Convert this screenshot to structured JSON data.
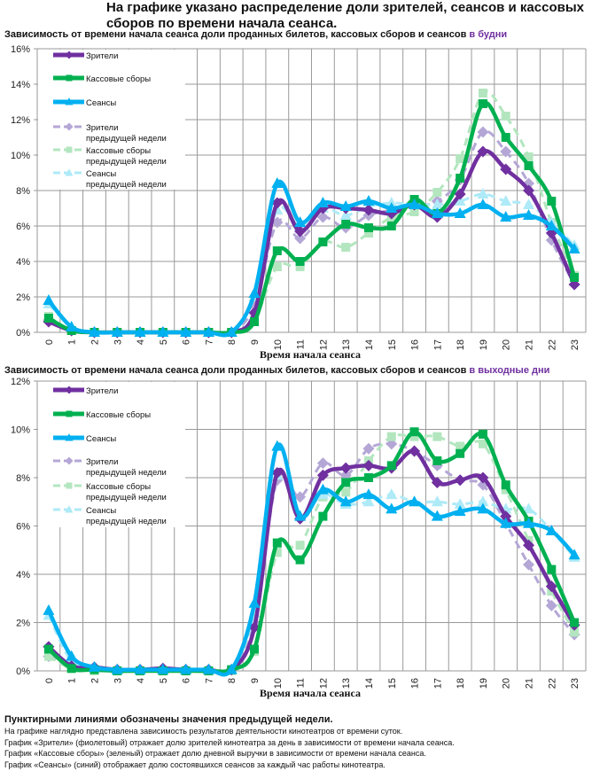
{
  "title": "На графике указано распределение доли зрителей, сеансов и кассовых сборов по времени начала сеанса.",
  "colors": {
    "viewers": "#7030a0",
    "revenue": "#00b050",
    "sessions": "#00b0f0",
    "viewers_prev": "#b4a7d6",
    "revenue_prev": "#b3e6bf",
    "sessions_prev": "#aeeaf7"
  },
  "notes": {
    "head": "Пунктирными линиями обозначены значения предыдущей недели.",
    "lines": [
      "На графике наглядно представлена зависимость результатов деятельности кинотеатров от времени суток.",
      "График «Зрители» (фиолетовый)  отражает долю зрителей кинотеатра за день в зависимости от времени  начала сеанса.",
      "График «Кассовые сборы» (зеленый) отражает долю дневной выручки в зависимости от времени начала сеанса.",
      "График «Сеансы» (синий) отображает долю состоявшихся сеансов  за каждый час работы кинотеатра."
    ]
  },
  "chart_data": [
    {
      "type": "line",
      "title": "Зависимость от времени начала сеанса доли проданных билетов, кассовых сборов и сеансов",
      "title_highlight": "в будни",
      "xlabel": "Время начала сеанса",
      "ylabel": "",
      "ylim": [
        0,
        16
      ],
      "yticks": [
        "0%",
        "2%",
        "4%",
        "6%",
        "8%",
        "10%",
        "12%",
        "14%",
        "16%"
      ],
      "categories": [
        "0",
        "1",
        "2",
        "3",
        "4",
        "5",
        "6",
        "7",
        "8",
        "9",
        "10",
        "11",
        "12",
        "13",
        "14",
        "15",
        "16",
        "17",
        "18",
        "19",
        "20",
        "21",
        "22",
        "23"
      ],
      "grid": true,
      "legend": "top-left",
      "series": [
        {
          "key": "viewers_prev",
          "name": "Зрители предыдущей недели",
          "name_lines": [
            "Зрители",
            "предыдущей недели"
          ],
          "dashed": true,
          "marker": "diamond",
          "values": [
            0.7,
            0.1,
            0,
            0,
            0,
            0,
            0,
            0,
            0,
            1.5,
            6.2,
            5.3,
            6.5,
            5.9,
            6.6,
            6.9,
            7.1,
            7.4,
            8.6,
            11.3,
            10.2,
            8.4,
            5.2,
            2.7
          ]
        },
        {
          "key": "revenue_prev",
          "name": "Кассовые сборы предыдущей недели",
          "name_lines": [
            "Кассовые сборы",
            "предыдущей недели"
          ],
          "dashed": true,
          "marker": "square",
          "values": [
            0.9,
            0.1,
            0,
            0,
            0,
            0,
            0,
            0,
            0,
            0.7,
            3.7,
            3.7,
            5.1,
            4.8,
            5.6,
            6.5,
            6.8,
            7.9,
            9.8,
            13.5,
            12.2,
            9.9,
            6.2,
            3.2
          ]
        },
        {
          "key": "sessions_prev",
          "name": "Сеансы предыдущей недели",
          "name_lines": [
            "Сеансы",
            "предыдущей недели"
          ],
          "dashed": true,
          "marker": "triangle",
          "values": [
            1.6,
            0.3,
            0,
            0,
            0,
            0,
            0,
            0,
            0,
            2.0,
            6.9,
            6.0,
            7.0,
            6.6,
            7.1,
            7.3,
            7.2,
            7.2,
            7.4,
            7.8,
            7.4,
            7.2,
            6.2,
            4.9
          ]
        },
        {
          "key": "viewers",
          "name": "Зрители",
          "name_lines": [
            "Зрители"
          ],
          "dashed": false,
          "marker": "diamond",
          "values": [
            0.6,
            0.1,
            0,
            0,
            0,
            0,
            0,
            0,
            0,
            1.1,
            7.3,
            5.7,
            7.0,
            7.0,
            6.9,
            6.7,
            7.2,
            6.5,
            7.8,
            10.2,
            9.2,
            8.0,
            5.6,
            2.7
          ]
        },
        {
          "key": "revenue",
          "name": "Кассовые сборы",
          "name_lines": [
            "Кассовые сборы"
          ],
          "dashed": false,
          "marker": "square",
          "values": [
            0.8,
            0.1,
            0,
            0,
            0,
            0,
            0,
            0,
            0,
            0.6,
            4.6,
            4.0,
            5.1,
            6.1,
            5.9,
            6.0,
            7.5,
            6.7,
            8.7,
            12.9,
            11.0,
            9.4,
            7.4,
            3.1
          ]
        },
        {
          "key": "sessions",
          "name": "Сеансы",
          "name_lines": [
            "Сеансы"
          ],
          "dashed": false,
          "marker": "triangle",
          "values": [
            1.8,
            0.3,
            0,
            0,
            0,
            0,
            0,
            0,
            0,
            2.2,
            8.4,
            6.2,
            7.3,
            7.1,
            7.4,
            7.0,
            7.2,
            6.7,
            6.7,
            7.2,
            6.5,
            6.6,
            6.0,
            4.7
          ]
        }
      ]
    },
    {
      "type": "line",
      "title": "Зависимость от времени начала сеанса доли проданных билетов, кассовых сборов и сеансов",
      "title_highlight": "в выходные дни",
      "xlabel": "Время начала сеанса",
      "ylabel": "",
      "ylim": [
        0,
        12
      ],
      "yticks": [
        "0%",
        "2%",
        "4%",
        "6%",
        "8%",
        "10%",
        "12%"
      ],
      "categories": [
        "0",
        "1",
        "2",
        "3",
        "4",
        "5",
        "6",
        "7",
        "8",
        "9",
        "10",
        "11",
        "12",
        "13",
        "14",
        "15",
        "16",
        "17",
        "18",
        "19",
        "20",
        "21",
        "22",
        "23"
      ],
      "grid": true,
      "legend": "top-left",
      "series": [
        {
          "key": "viewers_prev",
          "name": "Зрители предыдущей недели",
          "name_lines": [
            "Зрители",
            "предыдущей недели"
          ],
          "dashed": true,
          "marker": "diamond",
          "values": [
            0.6,
            0.2,
            0.1,
            0.05,
            0.05,
            0.05,
            0.05,
            0.05,
            0.05,
            2.0,
            7.9,
            7.2,
            8.6,
            8.1,
            9.2,
            9.4,
            9.1,
            8.5,
            7.9,
            7.7,
            6.1,
            4.4,
            2.7,
            1.5
          ]
        },
        {
          "key": "revenue_prev",
          "name": "Кассовые сборы предыдущей недели",
          "name_lines": [
            "Кассовые сборы",
            "предыдущей недели"
          ],
          "dashed": true,
          "marker": "square",
          "values": [
            0.6,
            0.1,
            0,
            0,
            0,
            0,
            0,
            0,
            0,
            0.8,
            4.9,
            5.2,
            7.2,
            7.4,
            8.7,
            9.7,
            9.7,
            9.7,
            9.3,
            9.4,
            7.5,
            5.4,
            3.3,
            1.6
          ]
        },
        {
          "key": "sessions_prev",
          "name": "Сеансы предыдущей недели",
          "name_lines": [
            "Сеансы",
            "предыдущей недели"
          ],
          "dashed": true,
          "marker": "triangle",
          "values": [
            2.3,
            0.4,
            0.1,
            0.05,
            0.05,
            0.05,
            0.05,
            0.05,
            0.05,
            2.4,
            8.1,
            6.4,
            7.3,
            6.9,
            7.0,
            7.3,
            7.0,
            7.0,
            6.9,
            7.0,
            6.7,
            6.7,
            5.8,
            4.7
          ]
        },
        {
          "key": "viewers",
          "name": "Зрители",
          "name_lines": [
            "Зрители"
          ],
          "dashed": false,
          "marker": "diamond",
          "values": [
            1.0,
            0.2,
            0.15,
            0.05,
            0.05,
            0.1,
            0.05,
            0.05,
            0.05,
            1.8,
            8.2,
            6.3,
            8.1,
            8.4,
            8.5,
            8.4,
            9.1,
            7.8,
            7.9,
            8.0,
            6.4,
            5.2,
            3.5,
            1.9
          ]
        },
        {
          "key": "revenue",
          "name": "Кассовые сборы",
          "name_lines": [
            "Кассовые сборы"
          ],
          "dashed": false,
          "marker": "square",
          "values": [
            0.9,
            0.1,
            0.05,
            0,
            0,
            0,
            0,
            0,
            0.05,
            0.9,
            5.3,
            4.6,
            6.4,
            7.8,
            8.0,
            8.5,
            9.9,
            8.7,
            9.0,
            9.8,
            7.7,
            6.2,
            4.2,
            2.0
          ]
        },
        {
          "key": "sessions",
          "name": "Сеансы",
          "name_lines": [
            "Сеансы"
          ],
          "dashed": false,
          "marker": "triangle",
          "values": [
            2.5,
            0.6,
            0.15,
            0.05,
            0.05,
            0.05,
            0.05,
            0.05,
            0.05,
            2.8,
            9.3,
            6.4,
            7.5,
            7.0,
            7.3,
            6.7,
            7.0,
            6.4,
            6.6,
            6.7,
            6.1,
            6.1,
            5.8,
            4.8
          ]
        }
      ]
    }
  ]
}
